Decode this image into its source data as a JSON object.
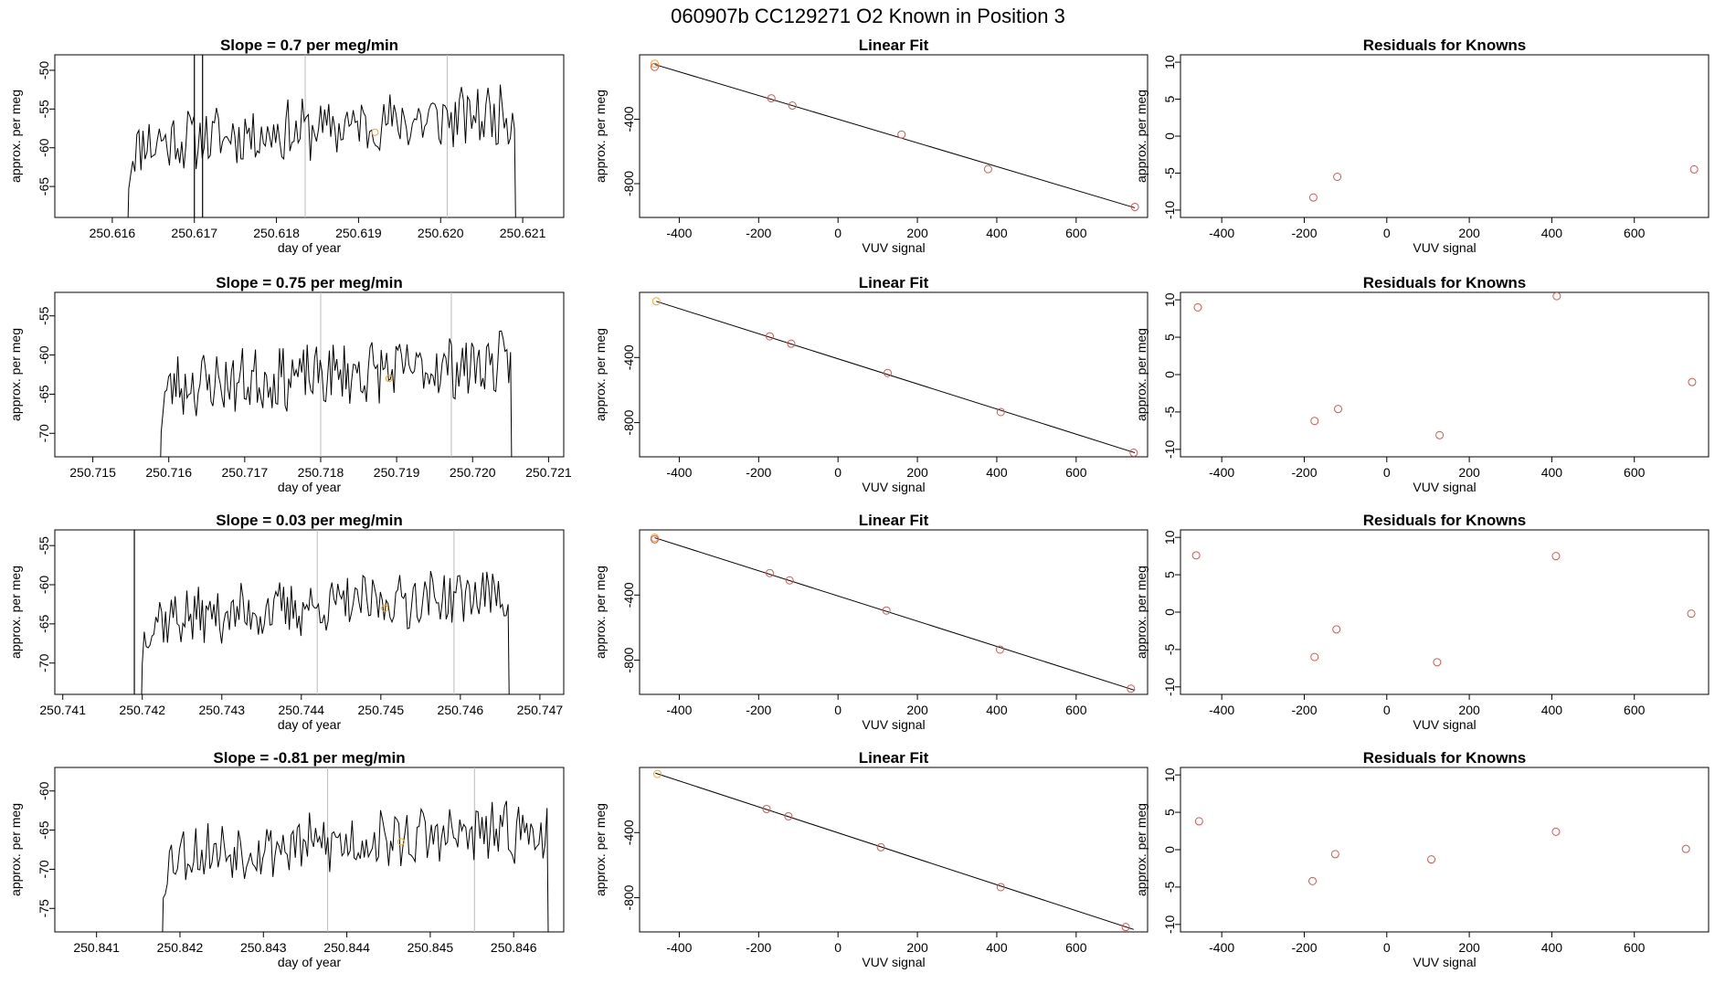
{
  "title": "060907b      CC129271    O2 Known in Position  3",
  "colors": {
    "trace": "#000000",
    "vline": "#bbbbbb",
    "point_orange": "#f5a623",
    "point_red": "#d9534f",
    "fit": "#000000"
  },
  "chart_data": [
    {
      "type": "line",
      "panel": "timeseries",
      "row": 0,
      "title": "Slope =  0.7  per meg/min",
      "xlabel": "day of year",
      "ylabel": "approx. per meg",
      "xlim": [
        250.6153,
        250.6215
      ],
      "ylim": [
        -69,
        -48
      ],
      "xticks": [
        "250.616",
        "250.617",
        "250.618",
        "250.619",
        "250.620",
        "250.621"
      ],
      "yticks": [
        -65,
        -60,
        -55,
        -50
      ],
      "vlines": [
        250.61835,
        250.62008
      ],
      "trace_start": 250.6162,
      "trace_end": 250.6209,
      "trace_base": -59.5,
      "trace_trend": 4,
      "trace_amp": 3.5,
      "trace_seed": 11,
      "spikes": [
        250.617,
        250.6171
      ],
      "marker": {
        "x": 250.6192,
        "y": -58,
        "color": "orange"
      }
    },
    {
      "type": "scatter",
      "panel": "linear_fit",
      "row": 0,
      "title": "Linear Fit",
      "xlabel": "VUV signal",
      "ylabel": "approx. per meg",
      "xlim": [
        -500,
        780
      ],
      "ylim": [
        -1010,
        0
      ],
      "xticks": [
        -400,
        -200,
        0,
        200,
        400,
        600
      ],
      "yticks": [
        -400,
        -800
      ],
      "points": [
        [
          -462,
          -55
        ],
        [
          -462,
          -75
        ],
        [
          -168,
          -270
        ],
        [
          -115,
          -315
        ],
        [
          160,
          -495
        ],
        [
          378,
          -710
        ],
        [
          748,
          -945
        ]
      ],
      "highlight": [
        0
      ],
      "fit": {
        "x": [
          -462,
          748
        ],
        "y": [
          -60,
          -950
        ]
      }
    },
    {
      "type": "scatter",
      "panel": "residuals",
      "row": 0,
      "title": "Residuals for Knowns",
      "xlabel": "VUV signal",
      "ylabel": "approx. per meg",
      "xlim": [
        -500,
        780
      ],
      "ylim": [
        -11,
        11
      ],
      "xticks": [
        -400,
        -200,
        0,
        200,
        400,
        600
      ],
      "yticks": [
        -10,
        -5,
        0,
        5,
        10
      ],
      "points": [
        [
          -178,
          -8.3
        ],
        [
          -120,
          -5.5
        ],
        [
          745,
          -4.5
        ]
      ]
    },
    {
      "type": "line",
      "panel": "timeseries",
      "row": 1,
      "title": "Slope =  0.75  per meg/min",
      "xlabel": "day of year",
      "ylabel": "approx. per meg",
      "xlim": [
        250.7145,
        250.7212
      ],
      "ylim": [
        -73,
        -52
      ],
      "xticks": [
        "250.715",
        "250.716",
        "250.717",
        "250.718",
        "250.719",
        "250.720",
        "250.721"
      ],
      "yticks": [
        -70,
        -65,
        -60,
        -55
      ],
      "vlines": [
        250.718,
        250.71972
      ],
      "trace_start": 250.7159,
      "trace_end": 250.7205,
      "trace_base": -64,
      "trace_trend": 3,
      "trace_amp": 3.6,
      "trace_seed": 23,
      "spikes": [],
      "marker": {
        "x": 250.7189,
        "y": -63,
        "color": "orange"
      }
    },
    {
      "type": "scatter",
      "panel": "linear_fit",
      "row": 1,
      "title": "Linear Fit",
      "xlabel": "VUV signal",
      "ylabel": "approx. per meg",
      "xlim": [
        -500,
        780
      ],
      "ylim": [
        -1010,
        0
      ],
      "xticks": [
        -400,
        -200,
        0,
        200,
        400,
        600
      ],
      "yticks": [
        -400,
        -800
      ],
      "points": [
        [
          -458,
          -55
        ],
        [
          -172,
          -270
        ],
        [
          -118,
          -315
        ],
        [
          125,
          -495
        ],
        [
          410,
          -735
        ],
        [
          745,
          -985
        ]
      ],
      "highlight": [
        0
      ],
      "fit": {
        "x": [
          -458,
          748
        ],
        "y": [
          -55,
          -985
        ]
      }
    },
    {
      "type": "scatter",
      "panel": "residuals",
      "row": 1,
      "title": "Residuals for Knowns",
      "xlabel": "VUV signal",
      "ylabel": "approx. per meg",
      "xlim": [
        -500,
        780
      ],
      "ylim": [
        -11,
        11
      ],
      "xticks": [
        -400,
        -200,
        0,
        200,
        400,
        600
      ],
      "yticks": [
        -10,
        -5,
        0,
        5,
        10
      ],
      "points": [
        [
          -458,
          9
        ],
        [
          -175,
          -6.2
        ],
        [
          -118,
          -4.6
        ],
        [
          128,
          -8.1
        ],
        [
          412,
          10.5
        ],
        [
          740,
          -1
        ]
      ]
    },
    {
      "type": "line",
      "panel": "timeseries",
      "row": 2,
      "title": "Slope =  0.03  per meg/min",
      "xlabel": "day of year",
      "ylabel": "approx. per meg",
      "xlim": [
        250.7409,
        250.7473
      ],
      "ylim": [
        -74,
        -53
      ],
      "xticks": [
        "250.741",
        "250.742",
        "250.743",
        "250.744",
        "250.745",
        "250.746",
        "250.747"
      ],
      "yticks": [
        -70,
        -65,
        -60,
        -55
      ],
      "vlines": [
        250.7442,
        250.74592
      ],
      "trace_start": 250.742,
      "trace_end": 250.7466,
      "trace_base": -64.5,
      "trace_trend": 3.5,
      "trace_amp": 3.2,
      "trace_seed": 37,
      "spikes": [
        250.7419
      ],
      "marker": {
        "x": 250.74505,
        "y": -63,
        "color": "orange"
      }
    },
    {
      "type": "scatter",
      "panel": "linear_fit",
      "row": 2,
      "title": "Linear Fit",
      "xlabel": "VUV signal",
      "ylabel": "approx. per meg",
      "xlim": [
        -500,
        780
      ],
      "ylim": [
        -1010,
        0
      ],
      "xticks": [
        -400,
        -200,
        0,
        200,
        400,
        600
      ],
      "yticks": [
        -400,
        -800
      ],
      "points": [
        [
          -462,
          -48
        ],
        [
          -462,
          -58
        ],
        [
          -172,
          -265
        ],
        [
          -122,
          -310
        ],
        [
          122,
          -495
        ],
        [
          408,
          -735
        ],
        [
          738,
          -975
        ]
      ],
      "highlight": [
        0
      ],
      "fit": {
        "x": [
          -462,
          748
        ],
        "y": [
          -48,
          -985
        ]
      }
    },
    {
      "type": "scatter",
      "panel": "residuals",
      "row": 2,
      "title": "Residuals for Knowns",
      "xlabel": "VUV signal",
      "ylabel": "approx. per meg",
      "xlim": [
        -500,
        780
      ],
      "ylim": [
        -11,
        11
      ],
      "xticks": [
        -400,
        -200,
        0,
        200,
        400,
        600
      ],
      "yticks": [
        -10,
        -5,
        0,
        5,
        10
      ],
      "points": [
        [
          -462,
          7.6
        ],
        [
          -175,
          -6
        ],
        [
          -122,
          -2.3
        ],
        [
          122,
          -6.7
        ],
        [
          410,
          7.5
        ],
        [
          738,
          -0.2
        ]
      ]
    },
    {
      "type": "line",
      "panel": "timeseries",
      "row": 3,
      "title": "Slope =  -0.81  per meg/min",
      "xlabel": "day of year",
      "ylabel": "approx. per meg",
      "xlim": [
        250.8405,
        250.8466
      ],
      "ylim": [
        -78,
        -57
      ],
      "xticks": [
        "250.841",
        "250.842",
        "250.843",
        "250.844",
        "250.845",
        "250.846"
      ],
      "yticks": [
        -75,
        -70,
        -65,
        -60
      ],
      "vlines": [
        250.84377,
        250.84553
      ],
      "trace_start": 250.8418,
      "trace_end": 250.8464,
      "trace_base": -68,
      "trace_trend": 3,
      "trace_amp": 3.4,
      "trace_seed": 53,
      "spikes": [],
      "marker": {
        "x": 250.84465,
        "y": -66.5,
        "color": "orange"
      }
    },
    {
      "type": "scatter",
      "panel": "linear_fit",
      "row": 3,
      "title": "Linear Fit",
      "xlabel": "VUV signal",
      "ylabel": "approx. per meg",
      "xlim": [
        -500,
        780
      ],
      "ylim": [
        -1010,
        0
      ],
      "xticks": [
        -400,
        -200,
        0,
        200,
        400,
        600
      ],
      "yticks": [
        -400,
        -800
      ],
      "points": [
        [
          -455,
          -40
        ],
        [
          -180,
          -255
        ],
        [
          -125,
          -300
        ],
        [
          108,
          -490
        ],
        [
          410,
          -735
        ],
        [
          725,
          -980
        ]
      ],
      "highlight": [
        0
      ],
      "fit": {
        "x": [
          -460,
          745
        ],
        "y": [
          -35,
          -995
        ]
      }
    },
    {
      "type": "scatter",
      "panel": "residuals",
      "row": 3,
      "title": "Residuals for Knowns",
      "xlabel": "VUV signal",
      "ylabel": "approx. per meg",
      "xlim": [
        -500,
        780
      ],
      "ylim": [
        -11,
        11
      ],
      "xticks": [
        -400,
        -200,
        0,
        200,
        400,
        600
      ],
      "yticks": [
        -10,
        -5,
        0,
        5,
        10
      ],
      "points": [
        [
          -455,
          3.8
        ],
        [
          -180,
          -4.2
        ],
        [
          -125,
          -0.6
        ],
        [
          108,
          -1.3
        ],
        [
          410,
          2.4
        ],
        [
          725,
          0.1
        ]
      ]
    }
  ]
}
